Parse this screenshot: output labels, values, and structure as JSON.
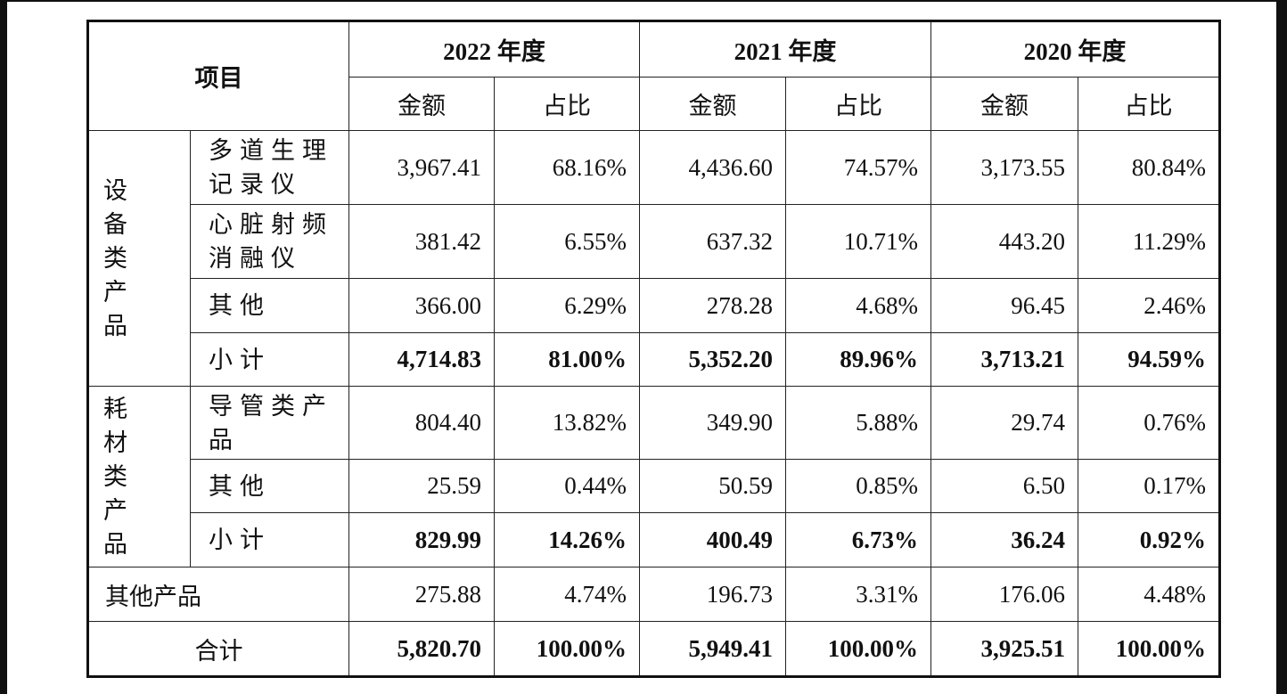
{
  "header": {
    "title": "项目",
    "columns": [
      {
        "year": "2022 年度",
        "amount_label": "金额",
        "ratio_label": "占比"
      },
      {
        "year": "2021 年度",
        "amount_label": "金额",
        "ratio_label": "占比"
      },
      {
        "year": "2020 年度",
        "amount_label": "金额",
        "ratio_label": "占比"
      }
    ]
  },
  "groups": [
    {
      "label": "设备类产品",
      "rows": [
        {
          "item": "多道生理记录仪",
          "values": [
            "3,967.41",
            "68.16%",
            "4,436.60",
            "74.57%",
            "3,173.55",
            "80.84%"
          ],
          "bold": false
        },
        {
          "item": "心脏射频消融仪",
          "values": [
            "381.42",
            "6.55%",
            "637.32",
            "10.71%",
            "443.20",
            "11.29%"
          ],
          "bold": false
        },
        {
          "item": "其他",
          "values": [
            "366.00",
            "6.29%",
            "278.28",
            "4.68%",
            "96.45",
            "2.46%"
          ],
          "bold": false
        },
        {
          "item": "小计",
          "values": [
            "4,714.83",
            "81.00%",
            "5,352.20",
            "89.96%",
            "3,713.21",
            "94.59%"
          ],
          "bold": true
        }
      ]
    },
    {
      "label": "耗材类产品",
      "rows": [
        {
          "item": "导管类产品",
          "values": [
            "804.40",
            "13.82%",
            "349.90",
            "5.88%",
            "29.74",
            "0.76%"
          ],
          "bold": false
        },
        {
          "item": "其他",
          "values": [
            "25.59",
            "0.44%",
            "50.59",
            "0.85%",
            "6.50",
            "0.17%"
          ],
          "bold": false
        },
        {
          "item": "小计",
          "values": [
            "829.99",
            "14.26%",
            "400.49",
            "6.73%",
            "36.24",
            "0.92%"
          ],
          "bold": true
        }
      ]
    }
  ],
  "other": {
    "label": "其他产品",
    "values": [
      "275.88",
      "4.74%",
      "196.73",
      "3.31%",
      "176.06",
      "4.48%"
    ],
    "bold": false
  },
  "total": {
    "label": "合计",
    "values": [
      "5,820.70",
      "100.00%",
      "5,949.41",
      "100.00%",
      "3,925.51",
      "100.00%"
    ],
    "bold": true
  }
}
